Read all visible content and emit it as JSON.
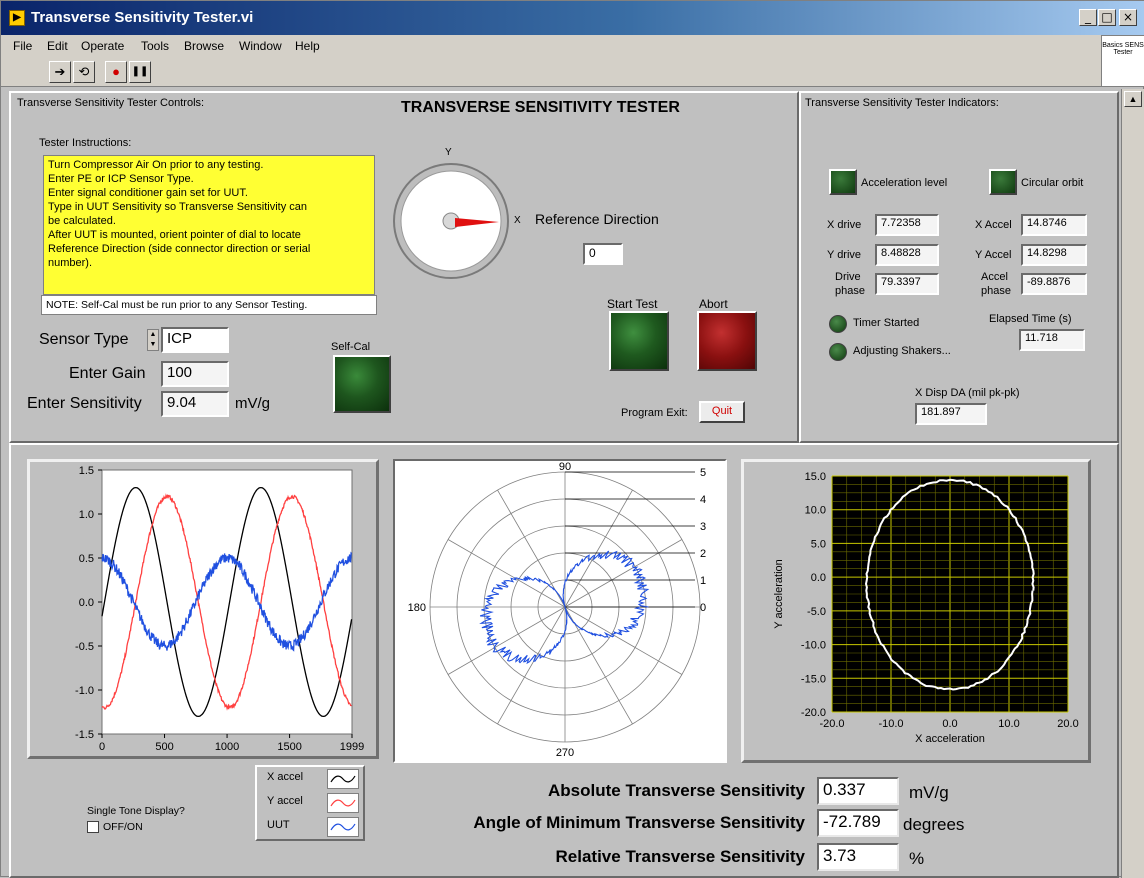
{
  "window": {
    "title": "Transverse Sensitivity Tester.vi",
    "icon_glyph": "▶",
    "minimize_glyph": "_",
    "maximize_glyph": "□",
    "close_glyph": "×"
  },
  "menu": [
    "File",
    "Edit",
    "Operate",
    "Tools",
    "Browse",
    "Window",
    "Help"
  ],
  "toolbar": {
    "run_glyph": "➔",
    "run_continuous_glyph": "⟲",
    "abort_glyph": "●",
    "pause_glyph": "❚❚",
    "help_glyph": "?",
    "connector_label": "Basics SENS Tester"
  },
  "controls": {
    "section_label": "Transverse Sensitivity Tester Controls:",
    "panel_title": "TRANSVERSE SENSITIVITY TESTER",
    "instructions_label": "Tester Instructions:",
    "instructions": [
      "Turn Compressor Air On prior to any testing.",
      "Enter PE or ICP Sensor Type.",
      "Enter signal conditioner gain set for UUT.",
      "Type in UUT Sensitivity so Transverse Sensitivity can",
      "be calculated.",
      "After UUT is mounted, orient pointer of dial to locate",
      "Reference Direction (side connector direction or serial",
      "number)."
    ],
    "note": "NOTE: Self-Cal must be run prior to any Sensor Testing.",
    "sensor_type_label": "Sensor Type",
    "sensor_type_value": "ICP",
    "gain_label": "Enter Gain",
    "gain_value": "100",
    "sensitivity_label": "Enter Sensitivity",
    "sensitivity_value": "9.04",
    "sensitivity_unit": "mV/g",
    "self_cal_label": "Self-Cal",
    "dial_y_label": "Y",
    "dial_x_label": "X",
    "reference_direction_label": "Reference Direction",
    "reference_direction_value": "0",
    "start_test_label": "Start Test",
    "abort_label": "Abort",
    "program_exit_label": "Program Exit:",
    "quit_label": "Quit"
  },
  "indicators": {
    "section_label": "Transverse Sensitivity Tester Indicators:",
    "acceleration_level_label": "Acceleration level",
    "circular_orbit_label": "Circular orbit",
    "x_drive_label": "X drive",
    "x_drive_value": "7.72358",
    "y_drive_label": "Y drive",
    "y_drive_value": "8.48828",
    "drive_phase_label_1": "Drive",
    "drive_phase_label_2": "phase",
    "drive_phase_value": "79.3397",
    "x_accel_label": "X Accel",
    "x_accel_value": "14.8746",
    "y_accel_label": "Y Accel",
    "y_accel_value": "14.8298",
    "accel_phase_label_1": "Accel",
    "accel_phase_label_2": "phase",
    "accel_phase_value": "-89.8876",
    "timer_started_label": "Timer Started",
    "adjusting_shakers_label": "Adjusting Shakers...",
    "elapsed_time_label": "Elapsed Time (s)",
    "elapsed_time_value": "11.718",
    "x_disp_label": "X Disp DA (mil pk-pk)",
    "x_disp_value": "181.897"
  },
  "results": {
    "abs_label": "Absolute Transverse Sensitivity",
    "abs_value": "0.337",
    "abs_unit": "mV/g",
    "angle_label": "Angle of Minimum Transverse Sensitivity",
    "angle_value": "-72.789",
    "angle_unit": "degrees",
    "rel_label": "Relative Transverse Sensitivity",
    "rel_value": "3.73",
    "rel_unit": "%"
  },
  "single_tone": {
    "label": "Single Tone Display?",
    "checkbox_label": "OFF/ON"
  },
  "legend": [
    {
      "name": "X accel",
      "color": "#000000"
    },
    {
      "name": "Y accel",
      "color": "#ff4040"
    },
    {
      "name": "UUT",
      "color": "#2050e0"
    }
  ],
  "chart_data": [
    {
      "type": "line",
      "xlim": [
        0,
        1999
      ],
      "ylim": [
        -1.5,
        1.5
      ],
      "x_ticks": [
        "0",
        "500",
        "1000",
        "1500",
        "1999"
      ],
      "y_ticks": [
        "1.5",
        "1.0",
        "0.5",
        "0.0",
        "-0.5",
        "-1.0",
        "-1.5"
      ],
      "series": [
        {
          "name": "X accel",
          "color": "#000000",
          "amplitude": 1.3,
          "period": 1000,
          "peak_x": 270,
          "noise": 0
        },
        {
          "name": "Y accel",
          "color": "#ff4040",
          "amplitude": 1.2,
          "period": 1000,
          "peak_x": 520,
          "noise": 0.02
        },
        {
          "name": "UUT",
          "color": "#2050e0",
          "amplitude": 0.5,
          "period": 1000,
          "peak_x": 1000,
          "noise": 0.06
        }
      ]
    },
    {
      "type": "scatter",
      "subtype": "polar",
      "rlim": [
        0,
        5
      ],
      "r_ticks": [
        "0",
        "1",
        "2",
        "3",
        "4",
        "5"
      ],
      "angle_labels": [
        "90",
        "180",
        "270"
      ],
      "lobe_axis_deg": 17,
      "max_radius": 3.0,
      "color": "#2050e0"
    },
    {
      "type": "line",
      "xlim": [
        -20,
        20
      ],
      "ylim": [
        -20,
        15
      ],
      "x_ticks": [
        "-20.0",
        "-10.0",
        "0.0",
        "10.0",
        "20.0"
      ],
      "y_ticks": [
        "15.0",
        "10.0",
        "5.0",
        "0.0",
        "-5.0",
        "-10.0",
        "-15.0",
        "-20.0"
      ],
      "xlabel": "X acceleration",
      "ylabel": "Y acceleration",
      "series": [
        {
          "name": "orbit",
          "color": "#ffffff",
          "center": [
            0,
            -2
          ],
          "rx": 14.8,
          "ry": 14.8
        }
      ]
    }
  ]
}
